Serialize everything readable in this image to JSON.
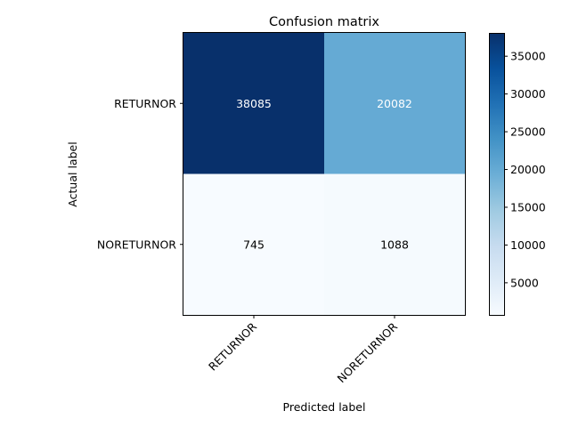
{
  "chart_data": {
    "type": "heatmap",
    "title": "Confusion matrix",
    "xlabel": "Predicted label",
    "ylabel": "Actual label",
    "x_categories": [
      "RETURNOR",
      "NORETURNOR"
    ],
    "y_categories": [
      "RETURNOR",
      "NORETURNOR"
    ],
    "matrix": [
      [
        38085,
        20082
      ],
      [
        745,
        1088
      ]
    ],
    "cell_labels": [
      [
        "38085",
        "20082"
      ],
      [
        "745",
        "1088"
      ]
    ],
    "colormap": "Blues",
    "colorbar": {
      "min": 745,
      "max": 38085,
      "ticks": [
        5000,
        10000,
        15000,
        20000,
        25000,
        30000,
        35000
      ],
      "tick_labels": [
        "5000",
        "10000",
        "15000",
        "20000",
        "25000",
        "30000",
        "35000"
      ]
    },
    "grid": false,
    "text_colors": {
      "dark": "#ffffff",
      "light": "#000000"
    }
  }
}
